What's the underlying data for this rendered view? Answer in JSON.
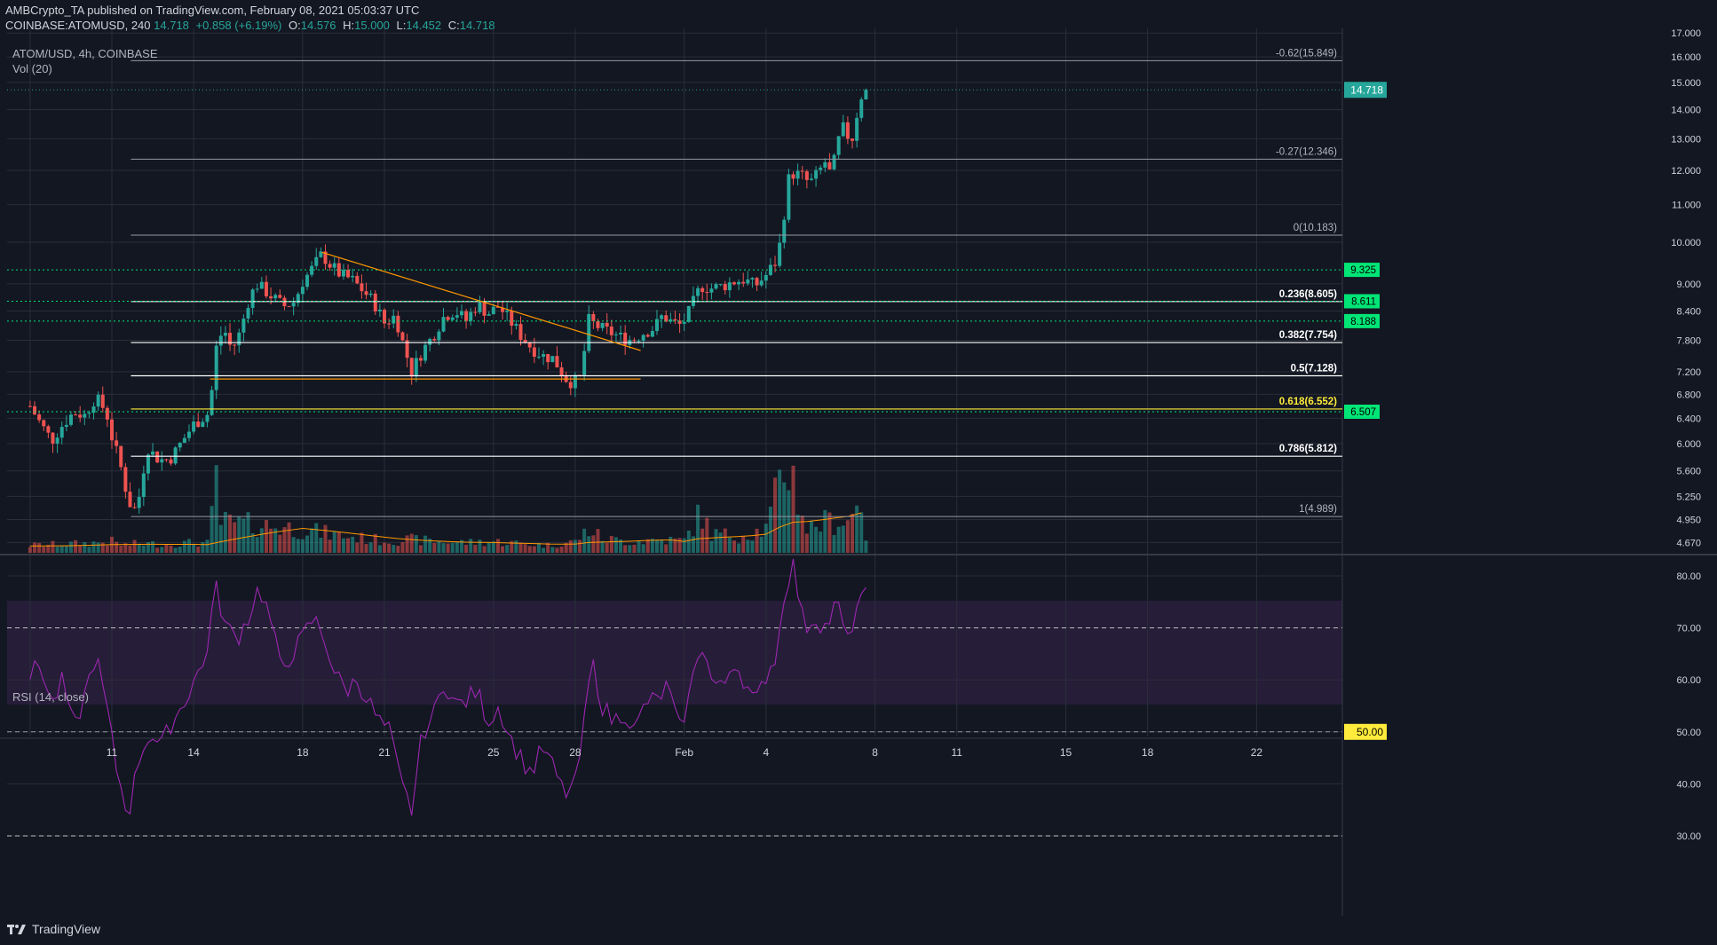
{
  "header": {
    "publisher": "AMBCrypto_TA published on TradingView.com, February 08, 2021 05:03:37 UTC",
    "symbol_line": "COINBASE:ATOMUSD, 240",
    "last": "14.718",
    "change": "+0.858 (+6.19%)",
    "o_label": "O:",
    "o": "14.576",
    "h_label": "H:",
    "h": "15.000",
    "l_label": "L:",
    "l": "14.452",
    "c_label": "C:",
    "c": "14.718"
  },
  "price_pane": {
    "title": "ATOM/USD, 4h, COINBASE",
    "volume_label": "Vol (20)"
  },
  "rsi_pane": {
    "title": "RSI (14, close)"
  },
  "footer": {
    "brand": "TradingView"
  },
  "colors": {
    "background": "#131722",
    "up": "#26a69a",
    "down": "#ef5350",
    "rsi": "#9c27b0",
    "fib": "#b2b5be",
    "support": "#00e676",
    "trendline": "#ff9800",
    "price_tag": "#26a69a",
    "highlight": "#ffeb3b"
  },
  "chart_data": {
    "type": "candlestick",
    "symbol": "ATOM/USD",
    "interval": "4h",
    "exchange": "COINBASE",
    "last_price": 14.718,
    "price_axis_ticks": [
      "17.000",
      "16.000",
      "15.000",
      "14.000",
      "13.000",
      "12.000",
      "11.000",
      "10.000",
      "9.000",
      "8.400",
      "7.800",
      "7.200",
      "6.800",
      "6.400",
      "6.000",
      "5.600",
      "5.250",
      "4.950",
      "4.670"
    ],
    "x_tick_labels": [
      "11",
      "14",
      "18",
      "21",
      "25",
      "28",
      "Feb",
      "4",
      "8",
      "11",
      "15",
      "18",
      "22"
    ],
    "fib_levels": [
      {
        "label": "-0.62(15.849)",
        "value": 15.849
      },
      {
        "label": "-0.27(12.346)",
        "value": 12.346
      },
      {
        "label": "0(10.183)",
        "value": 10.183
      },
      {
        "label": "0.236(8.605)",
        "value": 8.605
      },
      {
        "label": "0.382(7.754)",
        "value": 7.754
      },
      {
        "label": "0.5(7.128)",
        "value": 7.128
      },
      {
        "label": "0.618(6.552)",
        "value": 6.552
      },
      {
        "label": "0.786(5.812)",
        "value": 5.812
      },
      {
        "label": "1(4.989)",
        "value": 4.989
      }
    ],
    "support_levels": [
      {
        "label": "9.325",
        "value": 9.325
      },
      {
        "label": "8.611",
        "value": 8.611
      },
      {
        "label": "8.188",
        "value": 8.188
      },
      {
        "label": "6.507",
        "value": 6.507
      }
    ],
    "trendlines": [
      {
        "name": "descending",
        "from": [
          18.7,
          9.75
        ],
        "to": [
          30.4,
          7.6
        ]
      },
      {
        "name": "horizontal",
        "from": [
          14.6,
          7.07
        ],
        "to": [
          30.4,
          7.07
        ]
      }
    ],
    "close_path": [
      [
        8.0,
        6.6
      ],
      [
        8.4,
        6.3
      ],
      [
        8.8,
        6.05
      ],
      [
        9.2,
        6.3
      ],
      [
        9.6,
        6.5
      ],
      [
        10.0,
        6.45
      ],
      [
        10.4,
        6.75
      ],
      [
        10.8,
        6.5
      ],
      [
        11.0,
        6.1
      ],
      [
        11.3,
        5.7
      ],
      [
        11.6,
        5.2
      ],
      [
        11.8,
        5.05
      ],
      [
        12.0,
        5.25
      ],
      [
        12.3,
        5.95
      ],
      [
        12.6,
        5.8
      ],
      [
        12.9,
        5.75
      ],
      [
        13.2,
        5.8
      ],
      [
        13.6,
        6.05
      ],
      [
        14.0,
        6.3
      ],
      [
        14.3,
        6.4
      ],
      [
        14.6,
        6.5
      ],
      [
        14.8,
        7.6
      ],
      [
        15.1,
        8.05
      ],
      [
        15.4,
        7.6
      ],
      [
        15.7,
        7.95
      ],
      [
        16.0,
        8.6
      ],
      [
        16.3,
        9.0
      ],
      [
        16.6,
        8.85
      ],
      [
        16.9,
        8.7
      ],
      [
        17.3,
        8.5
      ],
      [
        17.7,
        8.6
      ],
      [
        18.0,
        9.05
      ],
      [
        18.4,
        9.4
      ],
      [
        18.7,
        9.7
      ],
      [
        19.0,
        9.45
      ],
      [
        19.4,
        9.2
      ],
      [
        19.8,
        9.1
      ],
      [
        20.2,
        8.85
      ],
      [
        20.6,
        8.6
      ],
      [
        21.0,
        8.15
      ],
      [
        21.4,
        8.3
      ],
      [
        21.7,
        7.7
      ],
      [
        22.0,
        7.2
      ],
      [
        22.4,
        7.6
      ],
      [
        22.8,
        7.9
      ],
      [
        23.2,
        8.3
      ],
      [
        23.6,
        8.4
      ],
      [
        24.0,
        8.2
      ],
      [
        24.4,
        8.55
      ],
      [
        24.8,
        8.35
      ],
      [
        25.2,
        8.5
      ],
      [
        25.6,
        8.2
      ],
      [
        26.0,
        7.9
      ],
      [
        26.4,
        7.65
      ],
      [
        26.8,
        7.5
      ],
      [
        27.2,
        7.45
      ],
      [
        27.6,
        7.1
      ],
      [
        27.9,
        7.0
      ],
      [
        28.2,
        7.1
      ],
      [
        28.5,
        8.2
      ],
      [
        28.9,
        8.05
      ],
      [
        29.3,
        7.95
      ],
      [
        29.7,
        7.85
      ],
      [
        30.1,
        7.8
      ],
      [
        30.5,
        7.95
      ],
      [
        30.9,
        8.05
      ],
      [
        31.2,
        8.3
      ],
      [
        31.6,
        8.15
      ],
      [
        31.9,
        8.1
      ],
      [
        32.2,
        8.4
      ],
      [
        32.6,
        8.95
      ],
      [
        33.0,
        8.9
      ],
      [
        33.4,
        8.95
      ],
      [
        33.8,
        9.05
      ],
      [
        34.2,
        9.1
      ],
      [
        34.6,
        8.95
      ],
      [
        35.0,
        9.2
      ],
      [
        35.4,
        9.55
      ],
      [
        35.6,
        10.3
      ],
      [
        35.8,
        11.7
      ],
      [
        36.0,
        11.9
      ],
      [
        36.3,
        11.85
      ],
      [
        36.6,
        11.6
      ],
      [
        36.9,
        11.9
      ],
      [
        37.2,
        12.3
      ],
      [
        37.4,
        11.75
      ],
      [
        37.6,
        12.8
      ],
      [
        37.9,
        13.5
      ],
      [
        38.1,
        12.7
      ],
      [
        38.3,
        13.7
      ],
      [
        38.5,
        14.5
      ],
      [
        38.7,
        14.718
      ]
    ],
    "volume_profile": [
      [
        8.0,
        0.08
      ],
      [
        9.0,
        0.09
      ],
      [
        10.0,
        0.1
      ],
      [
        11.0,
        0.12
      ],
      [
        11.4,
        0.08
      ],
      [
        12.0,
        0.1
      ],
      [
        13.0,
        0.09
      ],
      [
        14.0,
        0.11
      ],
      [
        14.6,
        0.1
      ],
      [
        14.8,
        0.9
      ],
      [
        15.0,
        0.32
      ],
      [
        16.0,
        0.3
      ],
      [
        17.0,
        0.28
      ],
      [
        18.0,
        0.25
      ],
      [
        19.0,
        0.2
      ],
      [
        20.0,
        0.16
      ],
      [
        21.0,
        0.13
      ],
      [
        22.0,
        0.14
      ],
      [
        23.0,
        0.12
      ],
      [
        24.0,
        0.11
      ],
      [
        25.0,
        0.12
      ],
      [
        26.0,
        0.1
      ],
      [
        27.0,
        0.08
      ],
      [
        28.0,
        0.12
      ],
      [
        28.5,
        0.25
      ],
      [
        29.0,
        0.15
      ],
      [
        30.0,
        0.12
      ],
      [
        31.0,
        0.14
      ],
      [
        32.0,
        0.13
      ],
      [
        32.6,
        0.42
      ],
      [
        33.0,
        0.2
      ],
      [
        34.0,
        0.18
      ],
      [
        35.0,
        0.25
      ],
      [
        35.8,
        1.0
      ],
      [
        36.0,
        0.78
      ],
      [
        36.5,
        0.25
      ],
      [
        37.0,
        0.32
      ],
      [
        38.0,
        0.35
      ],
      [
        38.5,
        0.55
      ],
      [
        38.7,
        0.1
      ]
    ],
    "rsi": {
      "levels": [
        {
          "label": "70.00",
          "value": 70
        },
        {
          "label": "50.00",
          "value": 50
        },
        {
          "label": "30.00",
          "value": 30
        }
      ],
      "axis_ticks": [
        "80.00",
        "70.00",
        "60.00",
        "50.00",
        "40.00",
        "30.00"
      ],
      "last": 76,
      "path": [
        [
          8.0,
          61
        ],
        [
          8.4,
          63
        ],
        [
          8.8,
          55
        ],
        [
          9.2,
          60
        ],
        [
          9.6,
          50
        ],
        [
          10.0,
          57
        ],
        [
          10.4,
          65
        ],
        [
          10.8,
          55
        ],
        [
          11.2,
          42
        ],
        [
          11.6,
          34
        ],
        [
          12.0,
          45
        ],
        [
          12.4,
          50
        ],
        [
          12.8,
          47
        ],
        [
          13.2,
          52
        ],
        [
          13.6,
          55
        ],
        [
          14.0,
          60
        ],
        [
          14.4,
          63
        ],
        [
          14.8,
          78
        ],
        [
          15.2,
          70
        ],
        [
          15.6,
          68
        ],
        [
          16.0,
          72
        ],
        [
          16.4,
          78
        ],
        [
          16.8,
          72
        ],
        [
          17.2,
          62
        ],
        [
          17.6,
          65
        ],
        [
          18.0,
          68
        ],
        [
          18.4,
          72
        ],
        [
          18.8,
          68
        ],
        [
          19.2,
          61
        ],
        [
          19.6,
          58
        ],
        [
          20.0,
          60
        ],
        [
          20.4,
          56
        ],
        [
          20.8,
          52
        ],
        [
          21.2,
          50
        ],
        [
          21.6,
          40
        ],
        [
          22.0,
          35
        ],
        [
          22.4,
          50
        ],
        [
          22.8,
          53
        ],
        [
          23.2,
          60
        ],
        [
          23.6,
          55
        ],
        [
          24.0,
          56
        ],
        [
          24.4,
          58
        ],
        [
          24.8,
          52
        ],
        [
          25.2,
          55
        ],
        [
          25.6,
          49
        ],
        [
          26.0,
          45
        ],
        [
          26.4,
          42
        ],
        [
          26.8,
          47
        ],
        [
          27.2,
          43
        ],
        [
          27.6,
          38
        ],
        [
          28.0,
          40
        ],
        [
          28.3,
          50
        ],
        [
          28.6,
          64
        ],
        [
          29.0,
          55
        ],
        [
          29.4,
          52
        ],
        [
          29.8,
          54
        ],
        [
          30.2,
          50
        ],
        [
          30.6,
          56
        ],
        [
          31.0,
          56
        ],
        [
          31.4,
          59
        ],
        [
          31.8,
          50
        ],
        [
          32.2,
          57
        ],
        [
          32.6,
          68
        ],
        [
          33.0,
          60
        ],
        [
          33.4,
          58
        ],
        [
          33.8,
          64
        ],
        [
          34.2,
          60
        ],
        [
          34.6,
          55
        ],
        [
          35.0,
          61
        ],
        [
          35.4,
          65
        ],
        [
          35.7,
          78
        ],
        [
          36.0,
          82
        ],
        [
          36.4,
          70
        ],
        [
          36.8,
          72
        ],
        [
          37.2,
          70
        ],
        [
          37.6,
          75
        ],
        [
          38.0,
          67
        ],
        [
          38.3,
          74
        ],
        [
          38.7,
          76
        ]
      ]
    }
  }
}
